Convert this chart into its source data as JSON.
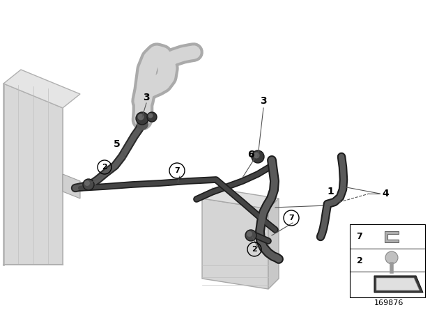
{
  "bg_color": "#ffffff",
  "part_number": "169876",
  "hose_color_dark": "#3a3a3a",
  "hose_color_mid": "#5a5a5a",
  "hose_color_light": "#888888",
  "radiator_color": "#d8d8d8",
  "radiator_edge": "#b0b0b0",
  "module_color": "#d0d0d0",
  "leader_color": "#666666",
  "white_hose": "#d5d5d5",
  "white_hose_dark": "#aaaaaa"
}
